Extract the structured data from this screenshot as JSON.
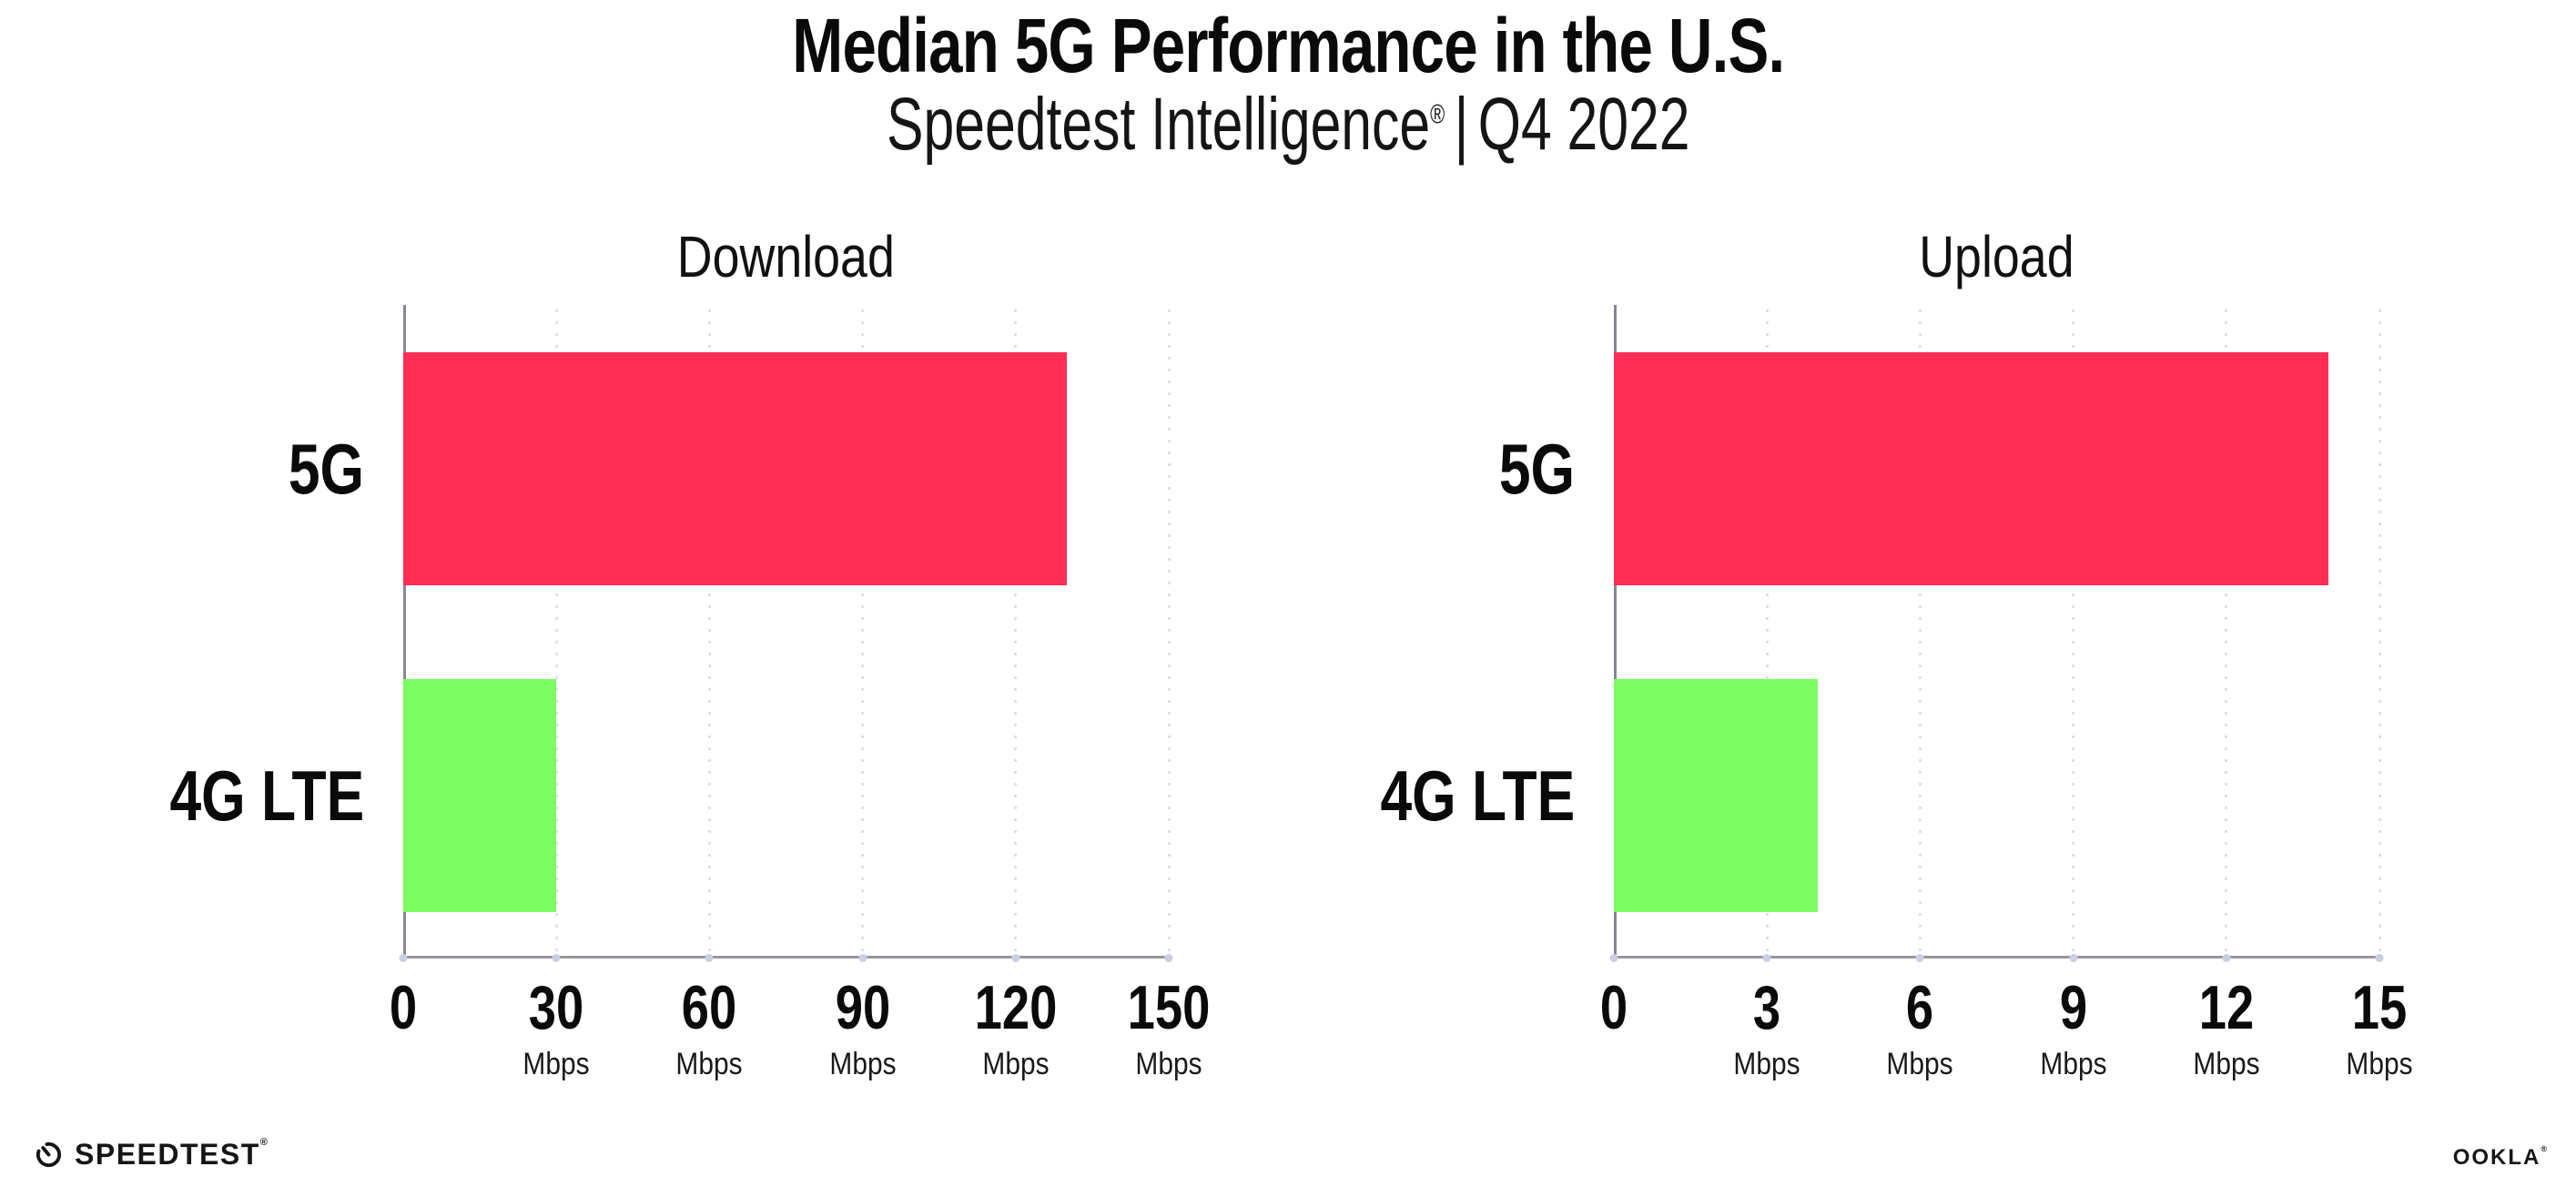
{
  "header": {
    "title": "Median 5G Performance in the U.S.",
    "subtitle_brand": "Speedtest Intelligence",
    "subtitle_mark": "®",
    "subtitle_sep": "|",
    "subtitle_period": "Q4 2022"
  },
  "chart_data": [
    {
      "type": "bar",
      "orientation": "horizontal",
      "title": "Download",
      "categories": [
        "5G",
        "4G LTE"
      ],
      "values": [
        130,
        30
      ],
      "unit": "Mbps",
      "xlim": [
        0,
        150
      ],
      "xticks": [
        "0",
        "30",
        "60",
        "90",
        "120",
        "150"
      ],
      "bar_colors": [
        "#FF2E56",
        "#7EFC64"
      ],
      "grid": "dotted vertical gridlines every 30 Mbps",
      "legend_position": "none"
    },
    {
      "type": "bar",
      "orientation": "horizontal",
      "title": "Upload",
      "categories": [
        "5G",
        "4G LTE"
      ],
      "values": [
        14,
        4
      ],
      "unit": "Mbps",
      "xlim": [
        0,
        15
      ],
      "xticks": [
        "0",
        "3",
        "6",
        "9",
        "12",
        "15"
      ],
      "bar_colors": [
        "#FF2E56",
        "#7EFC64"
      ],
      "grid": "dotted vertical gridlines every 3 Mbps",
      "legend_position": "none"
    }
  ],
  "colors": {
    "bar_5g": "#FF2E56",
    "bar_4g_lte": "#7EFC64",
    "x_axis": "#97979f",
    "y_axis": "#87878f",
    "grid_dot": "#dbdde8",
    "axis_tick_dot": "#c9cee3",
    "text": "#0a0a0a",
    "background": "#ffffff"
  },
  "footer": {
    "speedtest_label": "SPEEDTEST",
    "speedtest_mark": "®",
    "ookla_label": "OOKLA",
    "ookla_mark": "®"
  }
}
